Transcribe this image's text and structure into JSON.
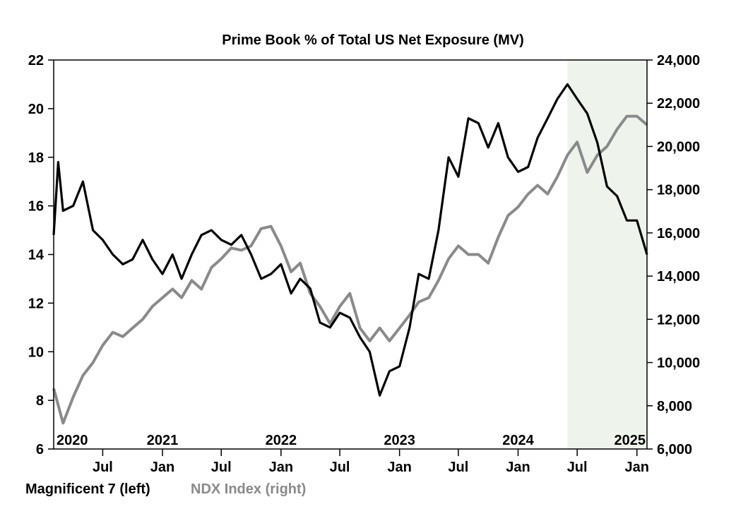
{
  "chart_data": {
    "type": "line",
    "title": "Prime Book % of Total US Net Exposure (MV)",
    "x_axis": {
      "start": "2020-02",
      "end": "2025-02",
      "year_labels": [
        {
          "date": "2020-02",
          "label": "2020"
        },
        {
          "date": "2021-01",
          "label": "2021"
        },
        {
          "date": "2022-01",
          "label": "2022"
        },
        {
          "date": "2023-01",
          "label": "2023"
        },
        {
          "date": "2024-01",
          "label": "2024"
        },
        {
          "date": "2025-01",
          "label": "2025"
        }
      ],
      "month_labels": [
        {
          "date": "2020-07",
          "label": "Jul"
        },
        {
          "date": "2021-01",
          "label": "Jan"
        },
        {
          "date": "2021-07",
          "label": "Jul"
        },
        {
          "date": "2022-01",
          "label": "Jan"
        },
        {
          "date": "2022-07",
          "label": "Jul"
        },
        {
          "date": "2023-01",
          "label": "Jan"
        },
        {
          "date": "2023-07",
          "label": "Jul"
        },
        {
          "date": "2024-01",
          "label": "Jan"
        },
        {
          "date": "2024-07",
          "label": "Jul"
        },
        {
          "date": "2025-01",
          "label": "Jan"
        }
      ]
    },
    "y_left": {
      "ylim": [
        6,
        22
      ],
      "ticks": [
        {
          "value": 6,
          "label": "6"
        },
        {
          "value": 8,
          "label": "8"
        },
        {
          "value": 10,
          "label": "10"
        },
        {
          "value": 12,
          "label": "12"
        },
        {
          "value": 14,
          "label": "14"
        },
        {
          "value": 16,
          "label": "16"
        },
        {
          "value": 18,
          "label": "18"
        },
        {
          "value": 20,
          "label": "20"
        },
        {
          "value": 22,
          "label": "22"
        }
      ]
    },
    "y_right": {
      "ylim": [
        6000,
        24000
      ],
      "ticks": [
        {
          "value": 6000,
          "label": "6,000"
        },
        {
          "value": 8000,
          "label": "8,000"
        },
        {
          "value": 10000,
          "label": "10,000"
        },
        {
          "value": 12000,
          "label": "12,000"
        },
        {
          "value": 14000,
          "label": "14,000"
        },
        {
          "value": 16000,
          "label": "16,000"
        },
        {
          "value": 18000,
          "label": "18,000"
        },
        {
          "value": 20000,
          "label": "20,000"
        },
        {
          "value": 22000,
          "label": "22,000"
        },
        {
          "value": 24000,
          "label": "24,000"
        }
      ]
    },
    "shaded_region": {
      "start": "2024-06",
      "end": "2025-02",
      "color": "#eef3ec"
    },
    "series": [
      {
        "name": "Magnificent 7 (left)",
        "axis": "left",
        "color": "#000000",
        "points": [
          [
            "2020-02",
            14.8
          ],
          [
            "2020-02-15",
            17.8
          ],
          [
            "2020-03",
            15.8
          ],
          [
            "2020-04",
            16.0
          ],
          [
            "2020-05",
            17.0
          ],
          [
            "2020-06",
            15.0
          ],
          [
            "2020-07",
            14.6
          ],
          [
            "2020-08",
            14.0
          ],
          [
            "2020-09",
            13.6
          ],
          [
            "2020-10",
            13.8
          ],
          [
            "2020-11",
            14.6
          ],
          [
            "2020-12",
            13.8
          ],
          [
            "2021-01",
            13.2
          ],
          [
            "2021-02",
            14.0
          ],
          [
            "2021-03",
            13.0
          ],
          [
            "2021-04",
            14.0
          ],
          [
            "2021-05",
            14.8
          ],
          [
            "2021-06",
            15.0
          ],
          [
            "2021-07",
            14.6
          ],
          [
            "2021-08",
            14.4
          ],
          [
            "2021-09",
            14.8
          ],
          [
            "2021-10",
            14.0
          ],
          [
            "2021-11",
            13.0
          ],
          [
            "2021-12",
            13.2
          ],
          [
            "2022-01",
            13.6
          ],
          [
            "2022-02",
            12.4
          ],
          [
            "2022-03",
            13.0
          ],
          [
            "2022-04",
            12.6
          ],
          [
            "2022-05",
            11.2
          ],
          [
            "2022-06",
            11.0
          ],
          [
            "2022-07",
            11.6
          ],
          [
            "2022-08",
            11.4
          ],
          [
            "2022-09",
            10.6
          ],
          [
            "2022-10",
            10.0
          ],
          [
            "2022-11",
            8.2
          ],
          [
            "2022-12",
            9.2
          ],
          [
            "2023-01",
            9.4
          ],
          [
            "2023-02",
            11.0
          ],
          [
            "2023-03",
            13.2
          ],
          [
            "2023-04",
            13.0
          ],
          [
            "2023-05",
            15.0
          ],
          [
            "2023-06",
            18.0
          ],
          [
            "2023-07",
            17.2
          ],
          [
            "2023-08",
            19.6
          ],
          [
            "2023-09",
            19.4
          ],
          [
            "2023-10",
            18.4
          ],
          [
            "2023-11",
            19.4
          ],
          [
            "2023-12",
            18.0
          ],
          [
            "2024-01",
            17.4
          ],
          [
            "2024-02",
            17.6
          ],
          [
            "2024-03",
            18.8
          ],
          [
            "2024-04",
            19.6
          ],
          [
            "2024-05",
            20.4
          ],
          [
            "2024-06",
            21.0
          ],
          [
            "2024-07",
            20.4
          ],
          [
            "2024-08",
            19.8
          ],
          [
            "2024-09",
            18.6
          ],
          [
            "2024-10",
            16.8
          ],
          [
            "2024-11",
            16.4
          ],
          [
            "2024-12",
            15.4
          ],
          [
            "2025-01",
            15.4
          ],
          [
            "2025-02",
            14.0
          ]
        ]
      },
      {
        "name": "NDX Index (right)",
        "axis": "right",
        "color": "#8a8a8a",
        "points": [
          [
            "2020-02",
            8800
          ],
          [
            "2020-03",
            7200
          ],
          [
            "2020-04",
            8400
          ],
          [
            "2020-05",
            9400
          ],
          [
            "2020-06",
            10000
          ],
          [
            "2020-07",
            10800
          ],
          [
            "2020-08",
            11400
          ],
          [
            "2020-09",
            11200
          ],
          [
            "2020-10",
            11600
          ],
          [
            "2020-11",
            12000
          ],
          [
            "2020-12",
            12600
          ],
          [
            "2021-01",
            13000
          ],
          [
            "2021-02",
            13400
          ],
          [
            "2021-03",
            13000
          ],
          [
            "2021-04",
            13800
          ],
          [
            "2021-05",
            13400
          ],
          [
            "2021-06",
            14400
          ],
          [
            "2021-07",
            14800
          ],
          [
            "2021-08",
            15300
          ],
          [
            "2021-09",
            15200
          ],
          [
            "2021-10",
            15400
          ],
          [
            "2021-11",
            16200
          ],
          [
            "2021-12",
            16300
          ],
          [
            "2022-01",
            15400
          ],
          [
            "2022-02",
            14200
          ],
          [
            "2022-03",
            14600
          ],
          [
            "2022-04",
            13200
          ],
          [
            "2022-05",
            12600
          ],
          [
            "2022-06",
            11800
          ],
          [
            "2022-07",
            12600
          ],
          [
            "2022-08",
            13200
          ],
          [
            "2022-09",
            11600
          ],
          [
            "2022-10",
            11000
          ],
          [
            "2022-11",
            11600
          ],
          [
            "2022-12",
            11000
          ],
          [
            "2023-01",
            11600
          ],
          [
            "2023-02",
            12200
          ],
          [
            "2023-03",
            12800
          ],
          [
            "2023-04",
            13000
          ],
          [
            "2023-05",
            13800
          ],
          [
            "2023-06",
            14800
          ],
          [
            "2023-07",
            15400
          ],
          [
            "2023-08",
            15000
          ],
          [
            "2023-09",
            15000
          ],
          [
            "2023-10",
            14600
          ],
          [
            "2023-11",
            15800
          ],
          [
            "2023-12",
            16800
          ],
          [
            "2024-01",
            17200
          ],
          [
            "2024-02",
            17800
          ],
          [
            "2024-03",
            18200
          ],
          [
            "2024-04",
            17800
          ],
          [
            "2024-05",
            18600
          ],
          [
            "2024-06",
            19600
          ],
          [
            "2024-07",
            20200
          ],
          [
            "2024-08",
            18800
          ],
          [
            "2024-09",
            19600
          ],
          [
            "2024-10",
            20000
          ],
          [
            "2024-11",
            20800
          ],
          [
            "2024-12",
            21400
          ],
          [
            "2025-01",
            21400
          ],
          [
            "2025-02",
            21000
          ]
        ]
      }
    ],
    "legend": [
      {
        "label": "Magnificent 7 (left)",
        "color": "#000000"
      },
      {
        "label": "NDX Index (right)",
        "color": "#8a8a8a"
      }
    ],
    "legend_position": "bottom-left",
    "grid": false
  }
}
